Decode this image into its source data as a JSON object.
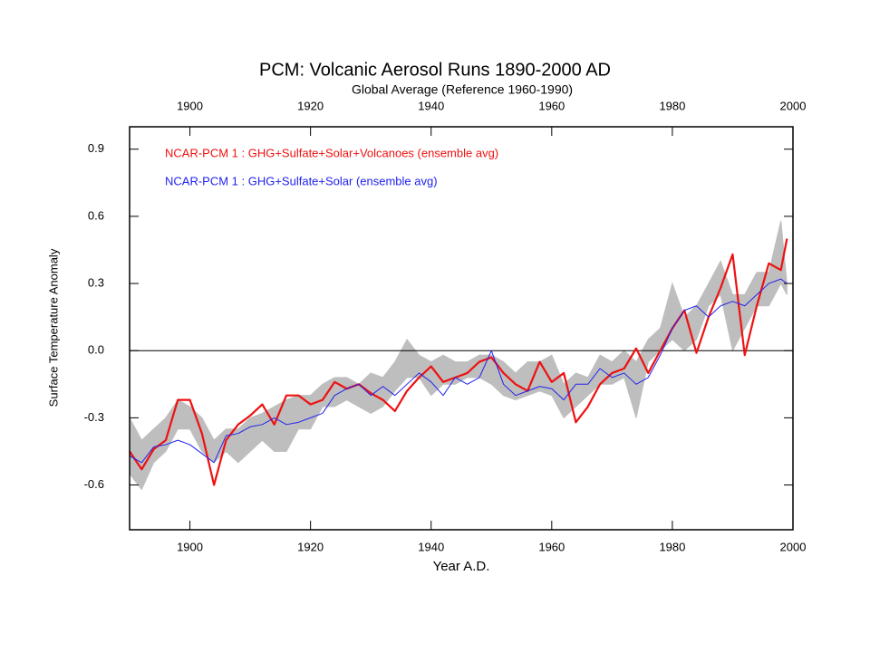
{
  "chart_data": {
    "type": "line",
    "title": "PCM: Volcanic Aerosol Runs 1890-2000 AD",
    "subtitle": "Global Average (Reference 1960-1990)",
    "x_label": "Year A.D.",
    "y_label": "Surface Temperature Anomaly",
    "x": [
      1890,
      1892,
      1894,
      1896,
      1898,
      1900,
      1902,
      1904,
      1906,
      1908,
      1910,
      1912,
      1914,
      1916,
      1918,
      1920,
      1922,
      1924,
      1926,
      1928,
      1930,
      1932,
      1934,
      1936,
      1938,
      1940,
      1942,
      1944,
      1946,
      1948,
      1950,
      1952,
      1954,
      1956,
      1958,
      1960,
      1962,
      1964,
      1966,
      1968,
      1970,
      1972,
      1974,
      1976,
      1978,
      1980,
      1982,
      1984,
      1986,
      1988,
      1990,
      1992,
      1994,
      1996,
      1998,
      1999
    ],
    "band": {
      "color": "#bebebe",
      "upper": [
        -0.3,
        -0.4,
        -0.35,
        -0.3,
        -0.22,
        -0.25,
        -0.3,
        -0.4,
        -0.35,
        -0.35,
        -0.3,
        -0.28,
        -0.25,
        -0.22,
        -0.2,
        -0.2,
        -0.15,
        -0.12,
        -0.12,
        -0.15,
        -0.1,
        -0.12,
        -0.05,
        0.05,
        -0.02,
        -0.05,
        -0.02,
        -0.05,
        -0.05,
        -0.02,
        -0.02,
        -0.05,
        -0.1,
        -0.05,
        -0.05,
        -0.02,
        -0.15,
        -0.1,
        -0.12,
        -0.02,
        -0.05,
        0.0,
        -0.05,
        0.05,
        0.1,
        0.3,
        0.15,
        0.2,
        0.3,
        0.4,
        0.25,
        0.25,
        0.35,
        0.35,
        0.58,
        0.3
      ],
      "lower": [
        -0.55,
        -0.62,
        -0.5,
        -0.45,
        -0.35,
        -0.35,
        -0.45,
        -0.5,
        -0.45,
        -0.5,
        -0.45,
        -0.4,
        -0.45,
        -0.45,
        -0.35,
        -0.35,
        -0.25,
        -0.25,
        -0.22,
        -0.25,
        -0.28,
        -0.25,
        -0.18,
        -0.12,
        -0.12,
        -0.2,
        -0.15,
        -0.15,
        -0.12,
        -0.12,
        -0.15,
        -0.2,
        -0.22,
        -0.2,
        -0.18,
        -0.2,
        -0.3,
        -0.25,
        -0.2,
        -0.15,
        -0.15,
        -0.12,
        -0.3,
        -0.05,
        0.0,
        0.05,
        0.0,
        0.05,
        0.2,
        0.25,
        0.0,
        0.1,
        0.2,
        0.2,
        0.3,
        0.25
      ]
    },
    "series": [
      {
        "name": "NCAR-PCM 1 : GHG+Sulfate+Solar+Volcanoes (ensemble avg)",
        "color": "#ee1111",
        "width": 2.2,
        "values": [
          -0.45,
          -0.53,
          -0.44,
          -0.4,
          -0.22,
          -0.22,
          -0.37,
          -0.6,
          -0.4,
          -0.33,
          -0.29,
          -0.24,
          -0.33,
          -0.2,
          -0.2,
          -0.24,
          -0.22,
          -0.14,
          -0.17,
          -0.15,
          -0.19,
          -0.22,
          -0.27,
          -0.18,
          -0.12,
          -0.07,
          -0.14,
          -0.12,
          -0.1,
          -0.05,
          -0.03,
          -0.1,
          -0.15,
          -0.18,
          -0.05,
          -0.14,
          -0.1,
          -0.32,
          -0.25,
          -0.15,
          -0.1,
          -0.08,
          0.01,
          -0.1,
          0.0,
          0.1,
          0.18,
          -0.01,
          0.15,
          0.28,
          0.43,
          -0.02,
          0.2,
          0.39,
          0.36,
          0.5
        ]
      },
      {
        "name": "NCAR-PCM 1 : GHG+Sulfate+Solar (ensemble avg)",
        "color": "#2222ee",
        "width": 1,
        "values": [
          -0.47,
          -0.5,
          -0.43,
          -0.42,
          -0.4,
          -0.42,
          -0.46,
          -0.5,
          -0.38,
          -0.37,
          -0.34,
          -0.33,
          -0.3,
          -0.33,
          -0.32,
          -0.3,
          -0.28,
          -0.2,
          -0.17,
          -0.15,
          -0.2,
          -0.16,
          -0.2,
          -0.15,
          -0.1,
          -0.14,
          -0.2,
          -0.12,
          -0.15,
          -0.12,
          0.0,
          -0.15,
          -0.2,
          -0.18,
          -0.16,
          -0.17,
          -0.22,
          -0.15,
          -0.15,
          -0.08,
          -0.12,
          -0.1,
          -0.15,
          -0.12,
          -0.02,
          0.1,
          0.18,
          0.2,
          0.15,
          0.2,
          0.22,
          0.2,
          0.25,
          0.3,
          0.32,
          0.3
        ]
      }
    ],
    "xlim": [
      1890,
      2000
    ],
    "ylim": [
      -0.8,
      1.0
    ],
    "xticks": [
      1900,
      1920,
      1940,
      1960,
      1980,
      2000
    ],
    "yticks": [
      -0.6,
      -0.3,
      {
        "value": 0,
        "label": "0.0"
      },
      0.3,
      0.6,
      0.9
    ],
    "reference_line": 0
  }
}
